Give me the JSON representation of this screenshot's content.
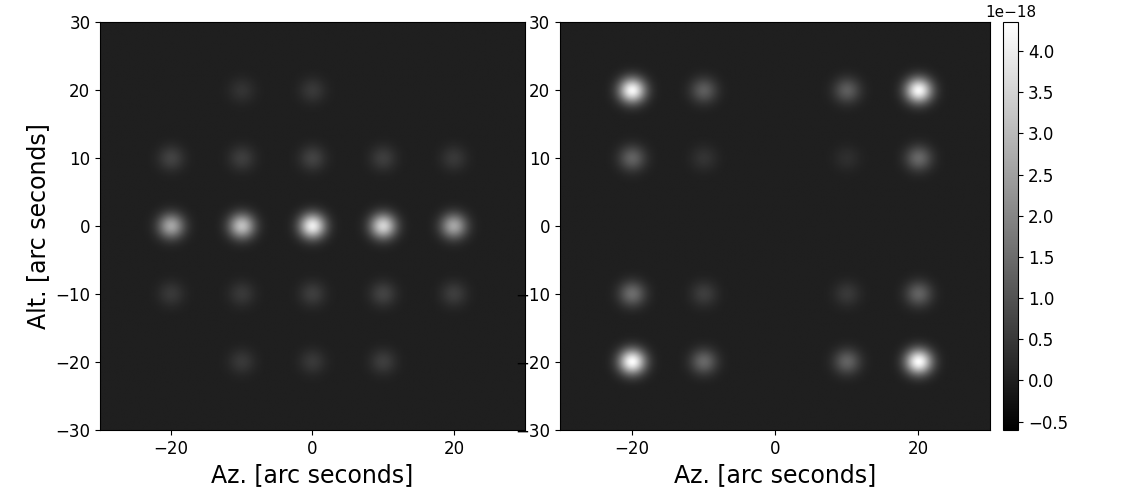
{
  "chart_data": [
    {
      "type": "heatmap",
      "xlabel": "Az. [arc seconds]",
      "ylabel": "Alt. [arc seconds]",
      "xlim": [
        -30,
        30
      ],
      "ylim": [
        -30,
        30
      ],
      "xticks": [
        {
          "value": -20,
          "label": "−20"
        },
        0,
        20
      ],
      "yticks": [
        {
          "value": -30,
          "label": "−30"
        },
        {
          "value": -20,
          "label": "−20"
        },
        {
          "value": -10,
          "label": "−10"
        },
        0,
        10,
        20,
        30
      ],
      "sources": [
        {
          "x": -20,
          "y": 0,
          "value": 2.6e-18
        },
        {
          "x": -10,
          "y": 0,
          "value": 3.1e-18
        },
        {
          "x": 0,
          "y": 0,
          "value": 4e-18
        },
        {
          "x": 10,
          "y": 0,
          "value": 3.5e-18
        },
        {
          "x": 20,
          "y": 0,
          "value": 2.6e-18
        },
        {
          "x": -20,
          "y": 10,
          "value": 7e-19
        },
        {
          "x": -10,
          "y": 10,
          "value": 6e-19
        },
        {
          "x": 0,
          "y": 10,
          "value": 7e-19
        },
        {
          "x": 10,
          "y": 10,
          "value": 6e-19
        },
        {
          "x": 20,
          "y": 10,
          "value": 5e-19
        },
        {
          "x": -20,
          "y": -10,
          "value": 5e-19
        },
        {
          "x": -10,
          "y": -10,
          "value": 5e-19
        },
        {
          "x": 0,
          "y": -10,
          "value": 6e-19
        },
        {
          "x": 10,
          "y": -10,
          "value": 7e-19
        },
        {
          "x": 20,
          "y": -10,
          "value": 6e-19
        },
        {
          "x": -10,
          "y": 20,
          "value": 4e-19
        },
        {
          "x": 0,
          "y": 20,
          "value": 5e-19
        },
        {
          "x": -10,
          "y": -20,
          "value": 5e-19
        },
        {
          "x": 0,
          "y": -20,
          "value": 5e-19
        },
        {
          "x": 10,
          "y": -20,
          "value": 6e-19
        }
      ]
    },
    {
      "type": "heatmap",
      "xlabel": "Az. [arc seconds]",
      "xlim": [
        -30,
        30
      ],
      "ylim": [
        -30,
        30
      ],
      "xticks": [
        {
          "value": -20,
          "label": "−20"
        },
        0,
        20
      ],
      "yticks": [
        {
          "value": -30,
          "label": "−30"
        },
        {
          "value": -20,
          "label": "−20"
        },
        {
          "value": -10,
          "label": "−10"
        },
        0,
        10,
        20,
        30
      ],
      "sources": [
        {
          "x": -20,
          "y": 20,
          "value": 4.2e-18
        },
        {
          "x": 20,
          "y": 20,
          "value": 4.2e-18
        },
        {
          "x": -20,
          "y": -20,
          "value": 4.3e-18
        },
        {
          "x": 20,
          "y": -20,
          "value": 4.3e-18
        },
        {
          "x": -10,
          "y": 20,
          "value": 1.2e-18
        },
        {
          "x": 10,
          "y": 20,
          "value": 1.2e-18
        },
        {
          "x": -10,
          "y": -20,
          "value": 1.4e-18
        },
        {
          "x": 10,
          "y": -20,
          "value": 1.3e-18
        },
        {
          "x": -20,
          "y": 10,
          "value": 1.3e-18
        },
        {
          "x": 20,
          "y": 10,
          "value": 1.4e-18
        },
        {
          "x": -20,
          "y": -10,
          "value": 1.5e-18
        },
        {
          "x": 20,
          "y": -10,
          "value": 1.3e-18
        },
        {
          "x": -10,
          "y": 10,
          "value": 4e-19
        },
        {
          "x": 10,
          "y": 10,
          "value": 3e-19
        },
        {
          "x": -10,
          "y": -10,
          "value": 6e-19
        },
        {
          "x": 10,
          "y": -10,
          "value": 5e-19
        }
      ],
      "colorbar_range": [
        -6e-19,
        4.35e-18
      ],
      "colorbar_scale_label": "1e−18",
      "colorbar_ticks": [
        {
          "value": -5e-19,
          "label": "−0.5"
        },
        {
          "value": 0.0,
          "label": "0.0"
        },
        {
          "value": 5e-19,
          "label": "0.5"
        },
        {
          "value": 1e-18,
          "label": "1.0"
        },
        {
          "value": 1.5e-18,
          "label": "1.5"
        },
        {
          "value": 2e-18,
          "label": "2.0"
        },
        {
          "value": 2.5e-18,
          "label": "2.5"
        },
        {
          "value": 3e-18,
          "label": "3.0"
        },
        {
          "value": 3.5e-18,
          "label": "3.5"
        },
        {
          "value": 4e-18,
          "label": "4.0"
        }
      ]
    }
  ]
}
